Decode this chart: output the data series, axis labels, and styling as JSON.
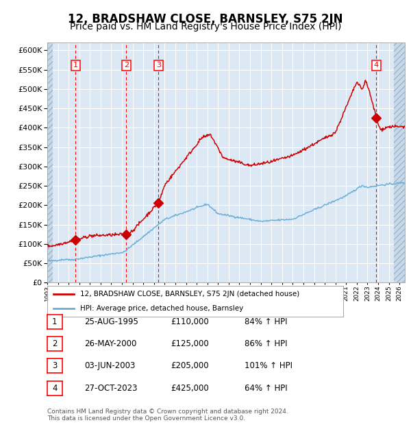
{
  "title": "12, BRADSHAW CLOSE, BARNSLEY, S75 2JN",
  "subtitle": "Price paid vs. HM Land Registry's House Price Index (HPI)",
  "title_fontsize": 12,
  "subtitle_fontsize": 10,
  "sales": [
    {
      "label": "1",
      "date_x": 1995.65,
      "price": 110000
    },
    {
      "label": "2",
      "date_x": 2000.4,
      "price": 125000
    },
    {
      "label": "3",
      "date_x": 2003.42,
      "price": 205000
    },
    {
      "label": "4",
      "date_x": 2023.82,
      "price": 425000
    }
  ],
  "ylim": [
    0,
    620000
  ],
  "yticks": [
    0,
    50000,
    100000,
    150000,
    200000,
    250000,
    300000,
    350000,
    400000,
    450000,
    500000,
    550000,
    600000
  ],
  "ytick_labels": [
    "£0",
    "£50K",
    "£100K",
    "£150K",
    "£200K",
    "£250K",
    "£300K",
    "£350K",
    "£400K",
    "£450K",
    "£500K",
    "£550K",
    "£600K"
  ],
  "xlim_start": 1993.0,
  "xlim_end": 2026.5,
  "hpi_color": "#6baed6",
  "price_color": "#cc0000",
  "bg_color": "#dce9f5",
  "grid_color": "#ffffff",
  "legend_label_red": "12, BRADSHAW CLOSE, BARNSLEY, S75 2JN (detached house)",
  "legend_label_blue": "HPI: Average price, detached house, Barnsley",
  "table_rows": [
    {
      "num": "1",
      "date": "25-AUG-1995",
      "price": "£110,000",
      "hpi": "84% ↑ HPI"
    },
    {
      "num": "2",
      "date": "26-MAY-2000",
      "price": "£125,000",
      "hpi": "86% ↑ HPI"
    },
    {
      "num": "3",
      "date": "03-JUN-2003",
      "price": "£205,000",
      "hpi": "101% ↑ HPI"
    },
    {
      "num": "4",
      "date": "27-OCT-2023",
      "price": "£425,000",
      "hpi": "64% ↑ HPI"
    }
  ],
  "footnote": "Contains HM Land Registry data © Crown copyright and database right 2024.\nThis data is licensed under the Open Government Licence v3.0."
}
